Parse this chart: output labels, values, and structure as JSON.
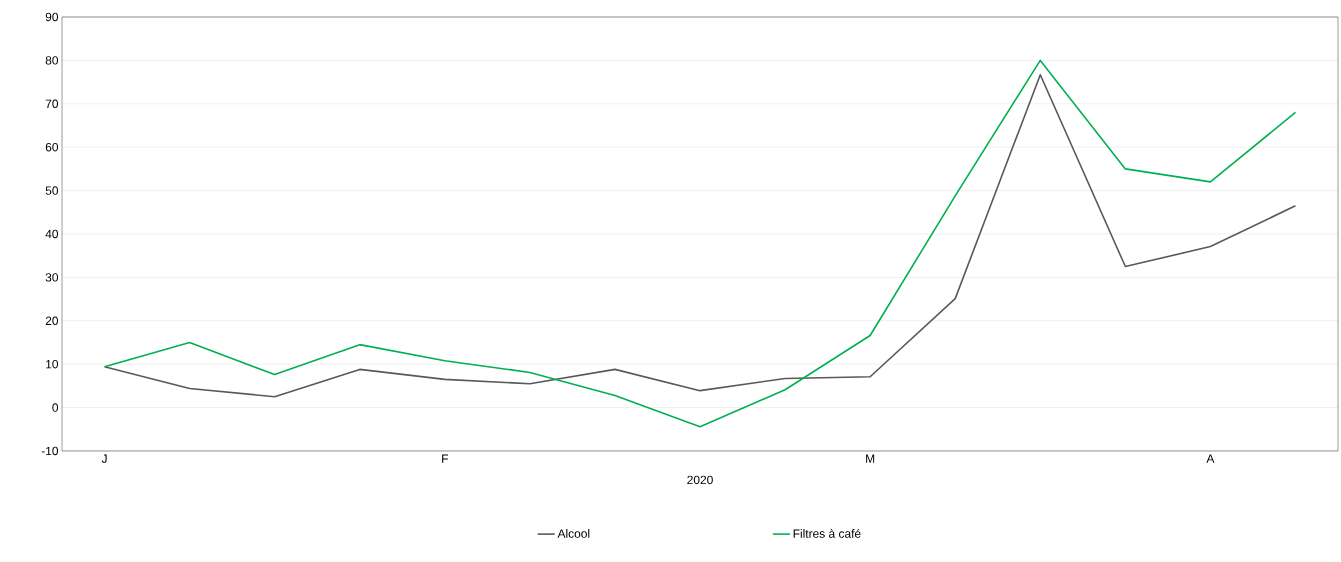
{
  "chart_data": {
    "type": "line",
    "xlabel": "2020",
    "categories": [
      "J",
      null,
      null,
      null,
      "F",
      null,
      null,
      null,
      null,
      "M",
      null,
      null,
      null,
      "A",
      null
    ],
    "series": [
      {
        "name": "Alcool",
        "color": "#595959",
        "values": [
          9.4,
          4.4,
          2.5,
          8.8,
          6.5,
          5.5,
          8.8,
          3.9,
          6.7,
          7.1,
          25.1,
          76.7,
          32.5,
          37.1,
          46.5
        ]
      },
      {
        "name": "Filtres à café",
        "color": "#00b050",
        "values": [
          9.4,
          15,
          7.6,
          14.5,
          10.8,
          8.1,
          2.8,
          -4.4,
          4.1,
          16.6,
          48.8,
          80,
          55,
          52,
          68
        ]
      }
    ],
    "ylim": [
      -10,
      90
    ],
    "yticks": [
      -10,
      0,
      10,
      20,
      30,
      40,
      50,
      60,
      70,
      80,
      90
    ],
    "grid": "y",
    "legend": "bottom",
    "marker": "none",
    "line_style": "solid"
  }
}
